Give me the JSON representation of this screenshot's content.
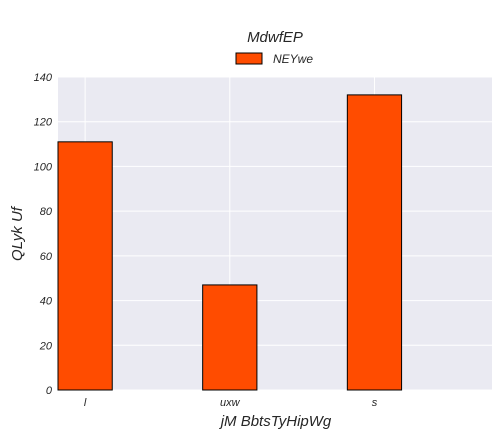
{
  "chart_data": {
    "type": "bar",
    "title": "MdwfEP",
    "xlabel": "jM BbtsTyHipWg",
    "ylabel": "QLyk Uf",
    "categories": [
      "l",
      "uxw",
      "s"
    ],
    "series": [
      {
        "name": "NEYwe",
        "values": [
          111,
          47,
          132
        ],
        "color": "#ff4c00"
      }
    ],
    "ylim": [
      0,
      140
    ],
    "yticks": [
      "0",
      "20",
      "40",
      "60",
      "80",
      "100",
      "120",
      "140"
    ],
    "grid": true,
    "legend_position": "top-center",
    "background_color": "#eaeaf2",
    "grid_color": "#ffffff"
  }
}
